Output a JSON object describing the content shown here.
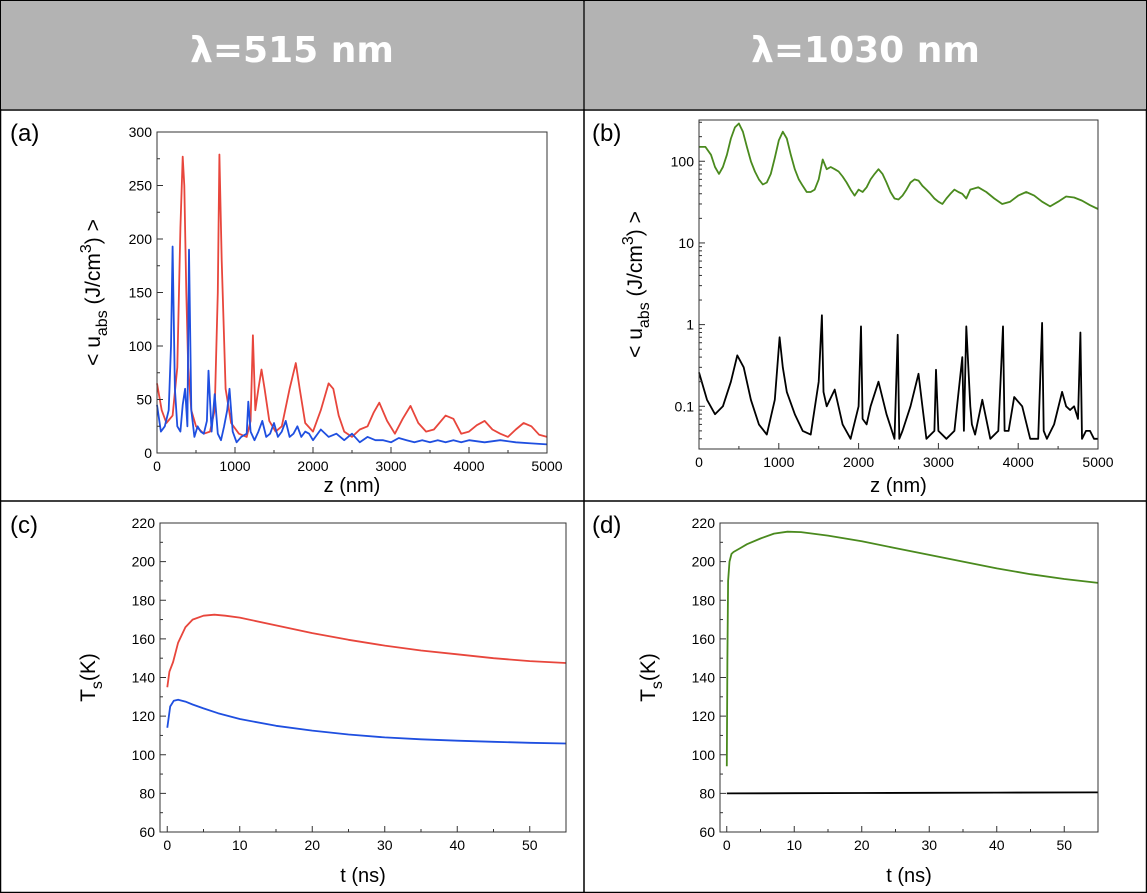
{
  "headers": {
    "left": "λ=515 nm",
    "right": "λ=1030 nm"
  },
  "panels": {
    "a": "(a)",
    "b": "(b)",
    "c": "(c)",
    "d": "(d)"
  },
  "colors": {
    "red": "#e8463c",
    "blue": "#1f4fe0",
    "green": "#4a8a1e",
    "black": "#000000",
    "grid": "#000000",
    "header": "#b3b3b3"
  },
  "chart_data": [
    {
      "id": "a",
      "type": "line",
      "xlabel": "z (nm)",
      "ylabel": {
        "main": "< u",
        "sub": "abs",
        "rest": " (J/cm",
        "sup": "3",
        "end": ") >"
      },
      "xlim": [
        0,
        5000
      ],
      "ylim": [
        0,
        300
      ],
      "xticks": [
        0,
        1000,
        2000,
        3000,
        4000,
        5000
      ],
      "yticks": [
        0,
        50,
        100,
        150,
        200,
        250,
        300
      ],
      "series": [
        {
          "color": "red",
          "x": [
            0,
            60,
            120,
            200,
            260,
            300,
            330,
            350,
            375,
            400,
            440,
            500,
            600,
            680,
            740,
            780,
            800,
            830,
            880,
            950,
            1050,
            1150,
            1200,
            1230,
            1260,
            1300,
            1340,
            1380,
            1440,
            1520,
            1600,
            1700,
            1780,
            1830,
            1900,
            2000,
            2100,
            2200,
            2260,
            2330,
            2400,
            2500,
            2600,
            2700,
            2780,
            2850,
            2950,
            3050,
            3150,
            3250,
            3350,
            3450,
            3550,
            3700,
            3800,
            3900,
            4000,
            4100,
            4200,
            4300,
            4400,
            4500,
            4600,
            4700,
            4800,
            4900,
            5000
          ],
          "y": [
            65,
            40,
            28,
            35,
            80,
            210,
            277,
            250,
            150,
            80,
            40,
            25,
            18,
            20,
            40,
            150,
            279,
            180,
            60,
            28,
            18,
            15,
            30,
            110,
            40,
            60,
            78,
            60,
            30,
            20,
            25,
            60,
            84,
            60,
            28,
            20,
            40,
            65,
            60,
            35,
            20,
            15,
            22,
            25,
            38,
            47,
            30,
            18,
            32,
            44,
            28,
            20,
            22,
            35,
            32,
            18,
            20,
            26,
            30,
            22,
            18,
            15,
            22,
            28,
            25,
            17,
            15
          ]
        },
        {
          "color": "blue",
          "x": [
            0,
            50,
            100,
            150,
            180,
            200,
            230,
            260,
            300,
            330,
            360,
            390,
            410,
            440,
            480,
            520,
            560,
            600,
            640,
            660,
            700,
            740,
            780,
            820,
            860,
            900,
            930,
            970,
            1020,
            1080,
            1150,
            1170,
            1200,
            1250,
            1300,
            1350,
            1400,
            1450,
            1500,
            1550,
            1600,
            1650,
            1700,
            1750,
            1800,
            1850,
            1900,
            1950,
            2000,
            2100,
            2200,
            2300,
            2400,
            2500,
            2600,
            2700,
            2800,
            2900,
            3000,
            3100,
            3200,
            3300,
            3400,
            3500,
            3600,
            3700,
            3800,
            3900,
            4000,
            4200,
            4400,
            4600,
            4800,
            5000
          ],
          "y": [
            45,
            20,
            25,
            40,
            100,
            193,
            60,
            25,
            20,
            45,
            60,
            25,
            190,
            40,
            15,
            25,
            20,
            18,
            30,
            77,
            20,
            55,
            18,
            12,
            25,
            40,
            60,
            20,
            10,
            15,
            18,
            48,
            20,
            12,
            20,
            30,
            15,
            18,
            28,
            15,
            20,
            30,
            15,
            18,
            25,
            15,
            20,
            18,
            12,
            22,
            15,
            18,
            12,
            18,
            10,
            15,
            12,
            12,
            10,
            14,
            12,
            10,
            12,
            10,
            12,
            10,
            12,
            10,
            12,
            10,
            12,
            10,
            9,
            8
          ]
        }
      ]
    },
    {
      "id": "b",
      "type": "line",
      "yscale": "log",
      "xlabel": "z (nm)",
      "ylabel": {
        "main": "< u",
        "sub": "abs",
        "rest": " (J/cm",
        "sup": "3",
        "end": ") >"
      },
      "xlim": [
        0,
        5000
      ],
      "ylim": [
        0.03,
        320
      ],
      "xticks": [
        0,
        1000,
        2000,
        3000,
        4000,
        5000
      ],
      "yticks": [
        0.1,
        1,
        10,
        100
      ],
      "yticklabels": [
        "0.1",
        "1",
        "10",
        "100"
      ],
      "series": [
        {
          "color": "green",
          "x": [
            0,
            80,
            150,
            200,
            250,
            300,
            350,
            400,
            450,
            500,
            550,
            600,
            650,
            700,
            750,
            800,
            850,
            900,
            950,
            1000,
            1050,
            1100,
            1150,
            1200,
            1250,
            1300,
            1350,
            1400,
            1450,
            1500,
            1550,
            1600,
            1650,
            1700,
            1750,
            1800,
            1850,
            1900,
            1950,
            2000,
            2050,
            2100,
            2150,
            2200,
            2250,
            2300,
            2350,
            2400,
            2450,
            2500,
            2550,
            2600,
            2650,
            2700,
            2750,
            2800,
            2850,
            2900,
            2950,
            3000,
            3050,
            3100,
            3150,
            3200,
            3250,
            3300,
            3350,
            3400,
            3500,
            3600,
            3700,
            3800,
            3900,
            4000,
            4100,
            4200,
            4300,
            4400,
            4500,
            4600,
            4700,
            4800,
            4900,
            5000
          ],
          "y": [
            150,
            150,
            120,
            85,
            70,
            85,
            120,
            190,
            260,
            290,
            230,
            150,
            100,
            75,
            60,
            52,
            55,
            70,
            110,
            180,
            230,
            190,
            120,
            80,
            60,
            50,
            42,
            42,
            45,
            60,
            105,
            80,
            85,
            80,
            75,
            65,
            55,
            45,
            38,
            45,
            42,
            48,
            60,
            70,
            80,
            70,
            55,
            42,
            35,
            34,
            38,
            45,
            55,
            60,
            58,
            50,
            45,
            40,
            35,
            32,
            30,
            35,
            40,
            45,
            42,
            40,
            35,
            45,
            48,
            42,
            35,
            30,
            32,
            38,
            42,
            38,
            32,
            28,
            32,
            37,
            36,
            33,
            29,
            26
          ]
        },
        {
          "color": "black",
          "x": [
            0,
            100,
            200,
            300,
            400,
            480,
            560,
            650,
            750,
            850,
            950,
            1010,
            1050,
            1100,
            1200,
            1300,
            1400,
            1500,
            1540,
            1560,
            1600,
            1700,
            1800,
            1900,
            2000,
            2030,
            2050,
            2100,
            2150,
            2250,
            2350,
            2450,
            2490,
            2510,
            2550,
            2650,
            2750,
            2800,
            2850,
            2950,
            2970,
            3000,
            3100,
            3200,
            3300,
            3320,
            3350,
            3400,
            3420,
            3460,
            3550,
            3650,
            3750,
            3810,
            3830,
            3880,
            3950,
            4050,
            4150,
            4250,
            4300,
            4320,
            4360,
            4450,
            4550,
            4600,
            4650,
            4700,
            4750,
            4780,
            4800,
            4850,
            4900,
            4950,
            5000
          ],
          "y": [
            0.26,
            0.12,
            0.08,
            0.1,
            0.2,
            0.42,
            0.3,
            0.12,
            0.06,
            0.045,
            0.12,
            0.7,
            0.3,
            0.15,
            0.08,
            0.05,
            0.045,
            0.2,
            1.3,
            0.15,
            0.1,
            0.16,
            0.06,
            0.04,
            0.1,
            0.95,
            0.07,
            0.06,
            0.1,
            0.2,
            0.08,
            0.04,
            0.75,
            0.04,
            0.05,
            0.1,
            0.25,
            0.1,
            0.04,
            0.05,
            0.28,
            0.05,
            0.04,
            0.05,
            0.4,
            0.05,
            0.95,
            0.1,
            0.06,
            0.045,
            0.12,
            0.04,
            0.05,
            0.95,
            0.05,
            0.05,
            0.13,
            0.1,
            0.04,
            0.04,
            1.05,
            0.05,
            0.04,
            0.06,
            0.15,
            0.1,
            0.09,
            0.1,
            0.07,
            0.8,
            0.04,
            0.05,
            0.05,
            0.04,
            0.04
          ]
        }
      ]
    },
    {
      "id": "c",
      "type": "line",
      "xlabel": "t (ns)",
      "ylabel": {
        "main": "T",
        "sub": "s",
        "rest": "(K)",
        "sup": "",
        "end": ""
      },
      "xlim": [
        -1,
        55
      ],
      "ylim": [
        60,
        220
      ],
      "xticks": [
        0,
        10,
        20,
        30,
        40,
        50
      ],
      "yticks": [
        60,
        80,
        100,
        120,
        140,
        160,
        180,
        200,
        220
      ],
      "series": [
        {
          "color": "red",
          "x": [
            0,
            0.3,
            0.8,
            1.5,
            2.5,
            3.5,
            5,
            6.5,
            8,
            10,
            15,
            20,
            25,
            30,
            35,
            40,
            45,
            50,
            55
          ],
          "y": [
            135,
            143,
            148,
            158,
            166,
            170,
            172,
            172.5,
            172,
            171,
            167,
            163,
            159.5,
            156.5,
            154,
            152,
            150,
            148.5,
            147.5
          ]
        },
        {
          "color": "blue",
          "x": [
            0,
            0.4,
            0.9,
            1.5,
            2.5,
            3.5,
            5,
            7,
            10,
            15,
            20,
            25,
            30,
            35,
            40,
            45,
            50,
            55
          ],
          "y": [
            114,
            125,
            128,
            128.5,
            127.5,
            126,
            124,
            121.5,
            118.5,
            115,
            112.5,
            110.5,
            109,
            108,
            107.3,
            106.7,
            106.2,
            105.8
          ]
        }
      ]
    },
    {
      "id": "d",
      "type": "line",
      "xlabel": "t (ns)",
      "ylabel": {
        "main": "T",
        "sub": "s",
        "rest": "(K)",
        "sup": "",
        "end": ""
      },
      "xlim": [
        -1,
        55
      ],
      "ylim": [
        60,
        220
      ],
      "xticks": [
        0,
        10,
        20,
        30,
        40,
        50
      ],
      "yticks": [
        60,
        80,
        100,
        120,
        140,
        160,
        180,
        200,
        220
      ],
      "series": [
        {
          "color": "green",
          "x": [
            0,
            0.1,
            0.2,
            0.4,
            0.7,
            1,
            2,
            3,
            5,
            7,
            9,
            11,
            15,
            20,
            25,
            30,
            35,
            40,
            45,
            50,
            55
          ],
          "y": [
            94,
            150,
            190,
            200,
            204,
            205,
            207,
            209,
            212,
            214.5,
            215.5,
            215.3,
            213.5,
            210.5,
            207,
            203.5,
            200,
            196.5,
            193.5,
            191,
            189
          ]
        },
        {
          "color": "black",
          "x": [
            0,
            10,
            20,
            30,
            40,
            55
          ],
          "y": [
            80,
            80.1,
            80.2,
            80.3,
            80.4,
            80.5
          ]
        }
      ]
    }
  ]
}
